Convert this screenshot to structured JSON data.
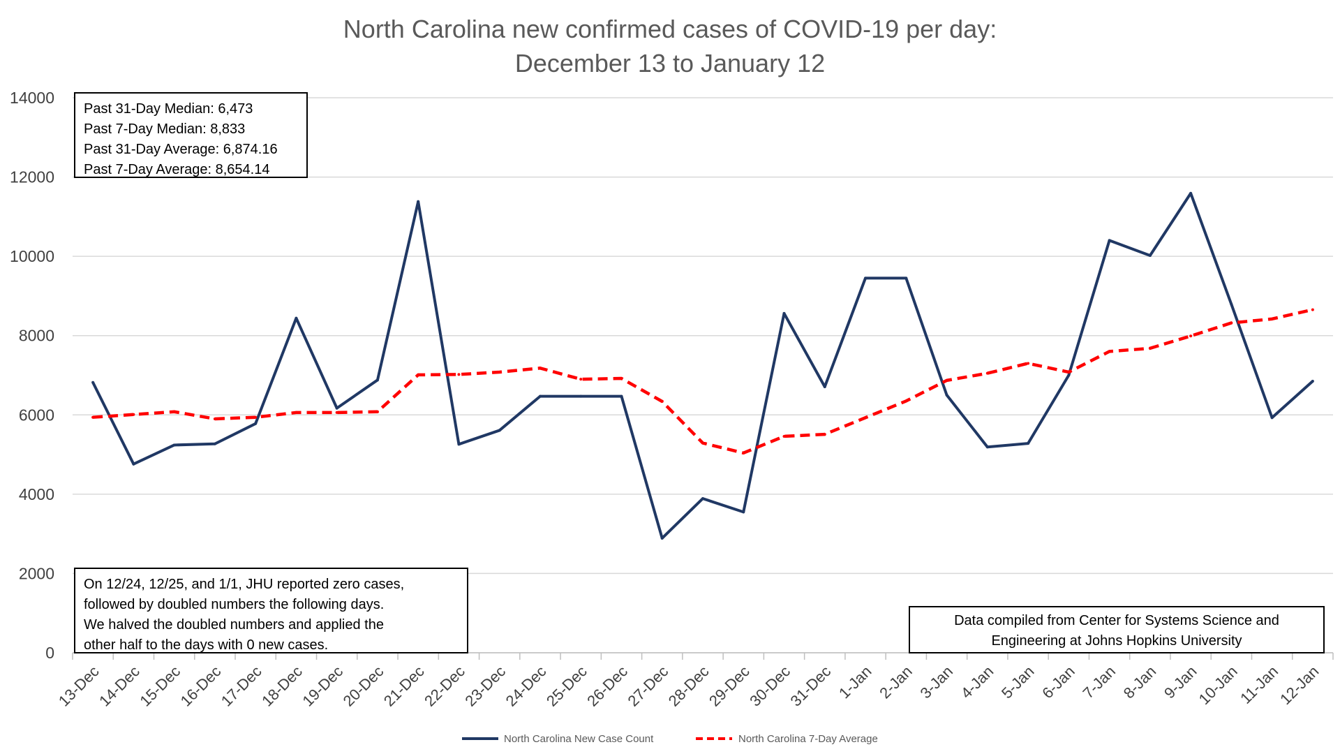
{
  "chart_data": {
    "type": "line",
    "title": [
      "North Carolina new confirmed cases of COVID-19 per day:",
      "December 13 to January 12"
    ],
    "xlabel": "",
    "ylabel": "",
    "ylim": [
      0,
      14000
    ],
    "yticks": [
      0,
      2000,
      4000,
      6000,
      8000,
      10000,
      12000,
      14000
    ],
    "grid": true,
    "legend_position": "bottom",
    "categories": [
      "13-Dec",
      "14-Dec",
      "15-Dec",
      "16-Dec",
      "17-Dec",
      "18-Dec",
      "19-Dec",
      "20-Dec",
      "21-Dec",
      "22-Dec",
      "23-Dec",
      "24-Dec",
      "25-Dec",
      "26-Dec",
      "27-Dec",
      "28-Dec",
      "29-Dec",
      "30-Dec",
      "31-Dec",
      "1-Jan",
      "2-Jan",
      "3-Jan",
      "4-Jan",
      "5-Jan",
      "6-Jan",
      "7-Jan",
      "8-Jan",
      "9-Jan",
      "10-Jan",
      "11-Jan",
      "12-Jan"
    ],
    "series": [
      {
        "name": "North Carolina New Case Count",
        "color": "#203864",
        "style": "solid",
        "values": [
          6820,
          4760,
          5240,
          5270,
          5780,
          8440,
          6170,
          6880,
          11380,
          5260,
          5610,
          6470,
          6470,
          6470,
          2890,
          3890,
          3550,
          8560,
          6710,
          9450,
          9450,
          6500,
          5190,
          5280,
          7000,
          10400,
          10020,
          11590,
          8790,
          5930,
          6850
        ]
      },
      {
        "name": "North Carolina 7-Day Average",
        "color": "#ff0000",
        "style": "dashed",
        "values": [
          5940,
          6010,
          6080,
          5900,
          5940,
          6060,
          6060,
          6080,
          7010,
          7020,
          7080,
          7180,
          6900,
          6920,
          6340,
          5290,
          5040,
          5460,
          5510,
          5930,
          6350,
          6870,
          7050,
          7300,
          7080,
          7600,
          7680,
          7990,
          8320,
          8420,
          8654
        ]
      }
    ]
  },
  "annotations": {
    "stats": [
      "Past 31-Day Median: 6,473",
      "Past 7-Day Median: 8,833",
      "Past 31-Day Average: 6,874.16",
      "Past 7-Day Average: 8,654.14"
    ],
    "jhu_note": [
      "On 12/24, 12/25, and 1/1, JHU reported zero cases,",
      "followed by doubled numbers the following days.",
      "We halved the doubled numbers and applied the",
      "other half to the days with 0 new cases."
    ],
    "source_note": [
      "Data compiled from Center for Systems Science and",
      "Engineering at Johns Hopkins University"
    ]
  }
}
